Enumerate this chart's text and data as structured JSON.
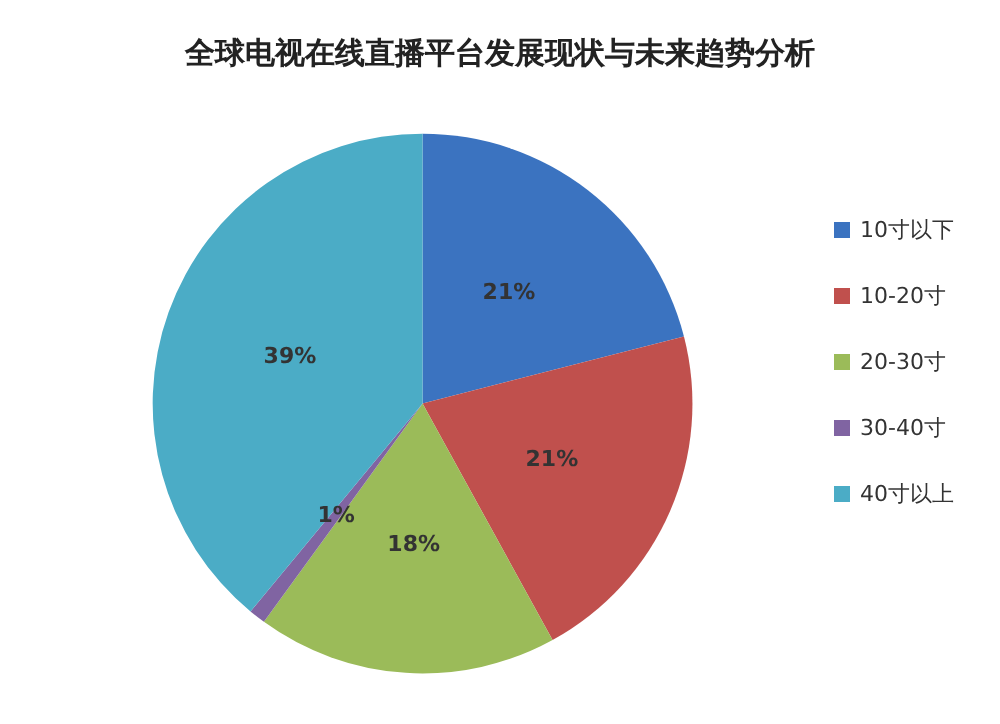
{
  "chart_data": {
    "type": "pie",
    "title": "全球电视在线直播平台发展现状与未来趋势分析",
    "categories": [
      "10寸以下",
      "10-20寸",
      "20-30寸",
      "30-40寸",
      "40寸以上"
    ],
    "values": [
      21,
      21,
      18,
      1,
      39
    ],
    "colors": [
      "#3b73c0",
      "#c0504d",
      "#9bbb59",
      "#8064a2",
      "#4bacc6"
    ],
    "value_labels": [
      "21%",
      "21%",
      "18%",
      "1%",
      "39%"
    ],
    "legend": "right"
  }
}
